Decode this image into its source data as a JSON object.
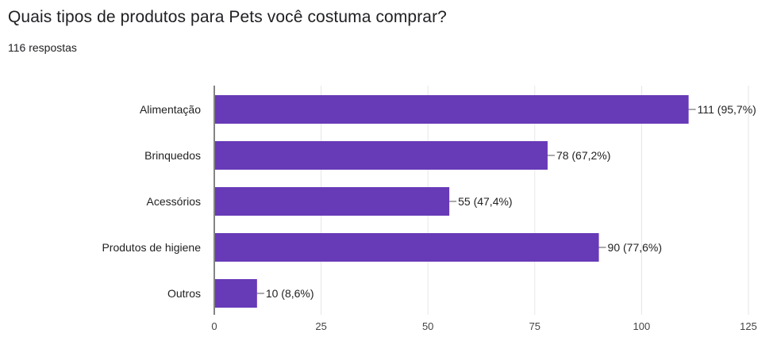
{
  "question": {
    "title": "Quais tipos de produtos para Pets você costuma comprar?",
    "responses": "116 respostas"
  },
  "chart_data": {
    "type": "bar",
    "orientation": "horizontal",
    "title": "Quais tipos de produtos para Pets você costuma comprar?",
    "xlabel": "",
    "ylabel": "",
    "categories": [
      "Alimentação",
      "Brinquedos",
      "Acessórios",
      "Produtos de higiene",
      "Outros"
    ],
    "values": [
      111,
      78,
      55,
      90,
      10
    ],
    "data_labels": [
      "111 (95,7%)",
      "78 (67,2%)",
      "55 (47,4%)",
      "90 (77,6%)",
      "10 (8,6%)"
    ],
    "xlim": [
      0,
      125
    ],
    "x_ticks": [
      0,
      25,
      50,
      75,
      100,
      125
    ],
    "x_tick_labels": [
      "0",
      "25",
      "50",
      "75",
      "100",
      "125"
    ],
    "grid": true,
    "bar_color": "#673ab7",
    "grid_color": "#e6e6e6",
    "axis_color": "#333333"
  }
}
